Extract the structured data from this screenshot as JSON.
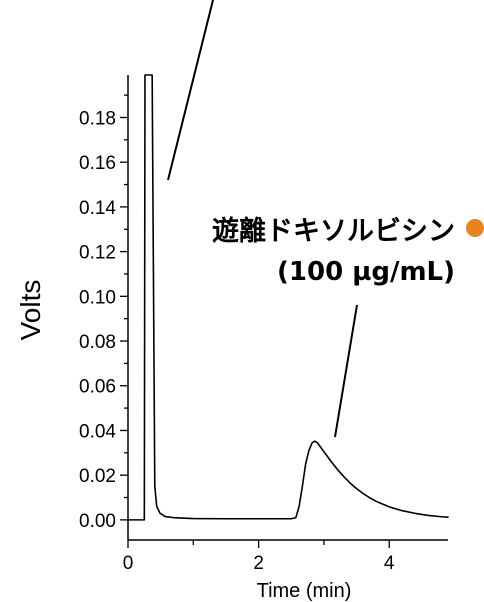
{
  "chart_data": {
    "type": "line",
    "xlabel": "Time (min)",
    "ylabel": "Volts",
    "xlim": [
      0,
      4.9
    ],
    "ylim": [
      -0.009,
      0.199
    ],
    "xticks": [
      0,
      2,
      4
    ],
    "xtick_labels": [
      "0",
      "2",
      "4"
    ],
    "x_minor_ticks": [
      1,
      3
    ],
    "yticks": [
      0,
      0.02,
      0.04,
      0.06,
      0.08,
      0.1,
      0.12,
      0.14,
      0.16,
      0.18
    ],
    "ytick_labels": [
      "0.00",
      "0.02",
      "0.04",
      "0.06",
      "0.08",
      "0.10",
      "0.12",
      "0.14",
      "0.16",
      "0.18"
    ],
    "y_minor_ticks": [
      0.01,
      0.03,
      0.05,
      0.07,
      0.09,
      0.11,
      0.13,
      0.15,
      0.17,
      0.19
    ],
    "grid": false,
    "series": [
      {
        "x": [
          0,
          0.25,
          0.26,
          0.37,
          0.41,
          0.44,
          0.49,
          0.57,
          0.7,
          1.0,
          1.5,
          2.0,
          2.5,
          2.57,
          2.62,
          2.67,
          2.72,
          2.77,
          2.82,
          2.86,
          2.9,
          2.95,
          3.0,
          3.1,
          3.2,
          3.3,
          3.4,
          3.5,
          3.6,
          3.7,
          3.8,
          4.0,
          4.2,
          4.4,
          4.6,
          4.8,
          4.9
        ],
        "y": [
          0.0,
          0.0,
          0.199,
          0.199,
          0.015,
          0.006,
          0.003,
          0.0015,
          0.001,
          0.0006,
          0.0005,
          0.0005,
          0.0005,
          0.001,
          0.006,
          0.015,
          0.025,
          0.031,
          0.0345,
          0.0352,
          0.0345,
          0.0325,
          0.0305,
          0.0265,
          0.0228,
          0.0195,
          0.0165,
          0.014,
          0.0118,
          0.0099,
          0.0083,
          0.0058,
          0.0041,
          0.0029,
          0.002,
          0.0014,
          0.0012
        ]
      }
    ],
    "annotations": [
      {
        "lines": [
          "遊離ドキソルビシン",
          "(100 µg/mL)"
        ]
      }
    ]
  },
  "colors": {
    "line": "#000000",
    "accent_dot": "#E8831F"
  }
}
